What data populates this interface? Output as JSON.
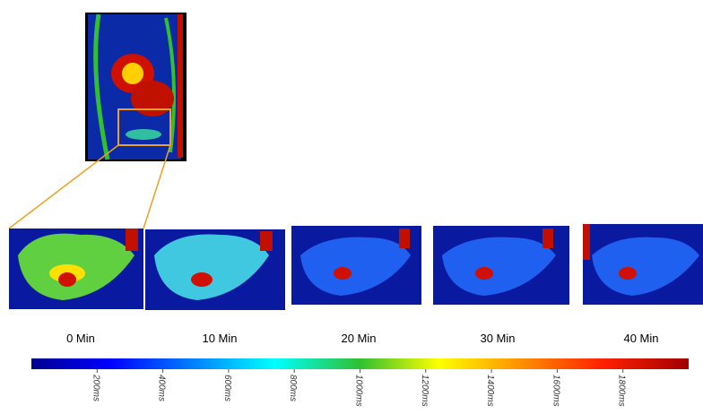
{
  "panels": [
    {
      "label": "0 Min"
    },
    {
      "label": "10 Min"
    },
    {
      "label": "20 Min"
    },
    {
      "label": "30 Min"
    },
    {
      "label": "40 Min"
    }
  ],
  "colorbar": {
    "lim": [
      0,
      2000
    ],
    "ticks": [
      {
        "value": 200,
        "label": "200ms"
      },
      {
        "value": 400,
        "label": "400ms"
      },
      {
        "value": 600,
        "label": "600ms"
      },
      {
        "value": 800,
        "label": "800ms"
      },
      {
        "value": 1000,
        "label": "1000ms"
      },
      {
        "value": 1200,
        "label": "1200ms"
      },
      {
        "value": 1400,
        "label": "1400ms"
      },
      {
        "value": 1600,
        "label": "1600ms"
      },
      {
        "value": 1800,
        "label": "1800ms"
      }
    ]
  }
}
